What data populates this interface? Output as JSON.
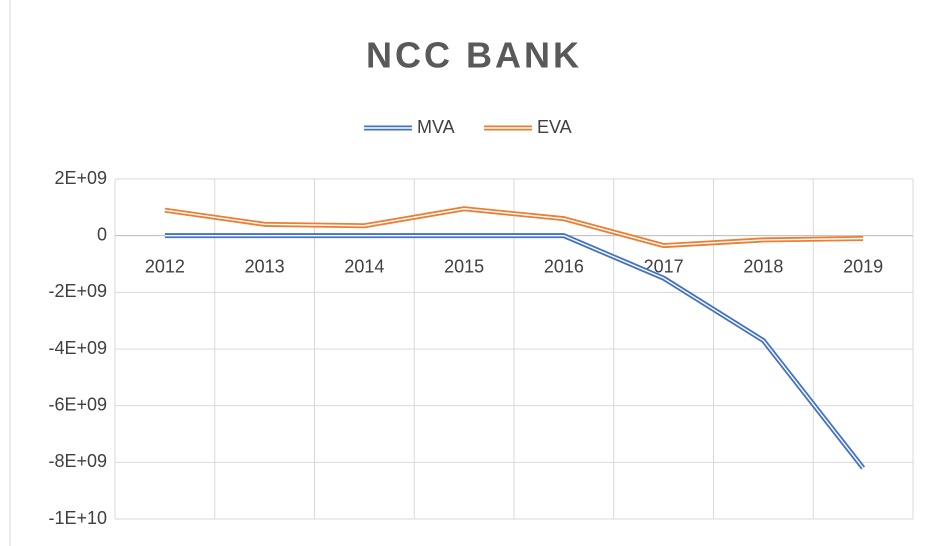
{
  "chart_data": {
    "type": "line",
    "title": "NCC BANK",
    "categories": [
      "2012",
      "2013",
      "2014",
      "2015",
      "2016",
      "2017",
      "2018",
      "2019"
    ],
    "series": [
      {
        "name": "MVA",
        "color": "#4472c4",
        "values": [
          0,
          0,
          0,
          0,
          0,
          -1500000000,
          -3700000000,
          -8200000000
        ]
      },
      {
        "name": "EVA",
        "color": "#ed7d31",
        "values": [
          900000000,
          400000000,
          350000000,
          950000000,
          600000000,
          -350000000,
          -150000000,
          -100000000
        ]
      }
    ],
    "ylim": [
      -10000000000,
      2000000000
    ],
    "yticks": [
      {
        "value": -10000000000,
        "label": "-1E+10"
      },
      {
        "value": -8000000000,
        "label": "-8E+09"
      },
      {
        "value": -6000000000,
        "label": "-6E+09"
      },
      {
        "value": -4000000000,
        "label": "-4E+09"
      },
      {
        "value": -2000000000,
        "label": "-2E+09"
      },
      0,
      {
        "value": 2000000000,
        "label": "2E+09"
      }
    ],
    "grid": true,
    "legend": "top"
  }
}
